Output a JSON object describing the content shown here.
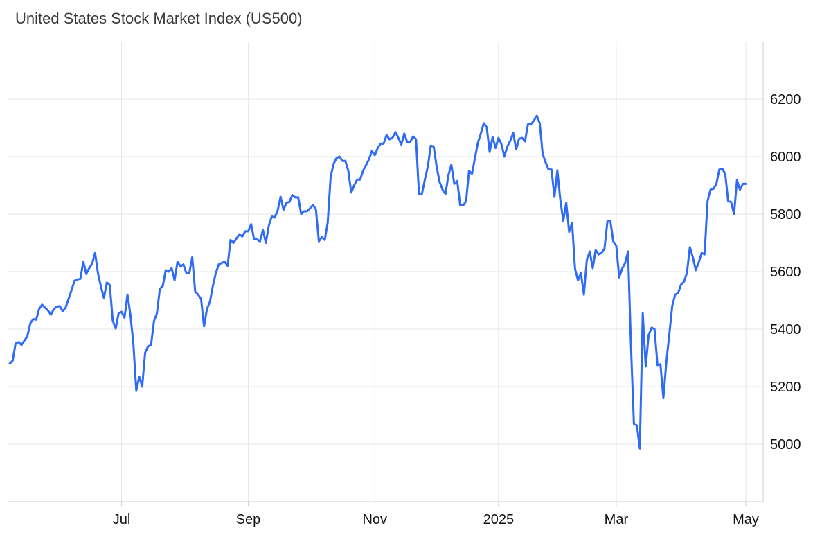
{
  "chart_data": {
    "type": "line",
    "title": "United States Stock Market Index (US500)",
    "xlabel": "",
    "ylabel": "",
    "x_ticks": [
      "Jul",
      "Sep",
      "Nov",
      "2025",
      "Mar",
      "May"
    ],
    "y_ticks": [
      5000,
      5200,
      5400,
      5600,
      5800,
      6000,
      6200
    ],
    "ylim": [
      4800,
      6400
    ],
    "grid": true,
    "colors": {
      "line": "#2f6bf6",
      "grid": "#e6e6e6",
      "axis": "#cccccc"
    },
    "series": [
      {
        "values": [
          5280,
          5290,
          5350,
          5355,
          5345,
          5360,
          5375,
          5420,
          5435,
          5433,
          5470,
          5485,
          5475,
          5465,
          5450,
          5470,
          5478,
          5480,
          5462,
          5475,
          5505,
          5535,
          5568,
          5573,
          5575,
          5635,
          5592,
          5612,
          5628,
          5665,
          5593,
          5548,
          5508,
          5562,
          5553,
          5430,
          5402,
          5455,
          5460,
          5440,
          5520,
          5450,
          5350,
          5185,
          5235,
          5200,
          5318,
          5340,
          5345,
          5428,
          5455,
          5540,
          5550,
          5605,
          5600,
          5612,
          5570,
          5635,
          5618,
          5625,
          5595,
          5595,
          5650,
          5530,
          5520,
          5505,
          5410,
          5470,
          5495,
          5550,
          5595,
          5625,
          5630,
          5635,
          5620,
          5710,
          5700,
          5715,
          5730,
          5722,
          5740,
          5740,
          5765,
          5712,
          5712,
          5705,
          5745,
          5700,
          5760,
          5792,
          5788,
          5812,
          5860,
          5815,
          5840,
          5842,
          5866,
          5858,
          5858,
          5800,
          5810,
          5810,
          5820,
          5832,
          5816,
          5705,
          5720,
          5710,
          5770,
          5930,
          5975,
          5995,
          6000,
          5985,
          5985,
          5950,
          5875,
          5900,
          5920,
          5920,
          5950,
          5970,
          5990,
          6020,
          6005,
          6030,
          6045,
          6045,
          6075,
          6060,
          6065,
          6085,
          6065,
          6042,
          6080,
          6050,
          6050,
          6070,
          6060,
          5870,
          5870,
          5920,
          5965,
          6038,
          6035,
          5965,
          5912,
          5885,
          5870,
          5936,
          5972,
          5905,
          5915,
          5830,
          5830,
          5845,
          5950,
          5940,
          5995,
          6048,
          6080,
          6116,
          6102,
          6016,
          6068,
          6030,
          6065,
          6043,
          6000,
          6035,
          6055,
          6082,
          6025,
          6062,
          6065,
          6053,
          6112,
          6112,
          6125,
          6142,
          6116,
          6010,
          5980,
          5955,
          5955,
          5860,
          5952,
          5850,
          5776,
          5840,
          5738,
          5770,
          5610,
          5570,
          5595,
          5520,
          5640,
          5670,
          5612,
          5675,
          5660,
          5665,
          5680,
          5775,
          5775,
          5705,
          5690,
          5580,
          5610,
          5630,
          5670,
          5340,
          5070,
          5065,
          4985,
          5455,
          5270,
          5380,
          5405,
          5400,
          5275,
          5278,
          5160,
          5285,
          5380,
          5480,
          5520,
          5525,
          5555,
          5565,
          5595,
          5685,
          5650,
          5605,
          5632,
          5665,
          5660,
          5845,
          5885,
          5888,
          5905,
          5955,
          5958,
          5940,
          5845,
          5842,
          5800,
          5918,
          5885,
          5905,
          5905
        ]
      }
    ]
  }
}
